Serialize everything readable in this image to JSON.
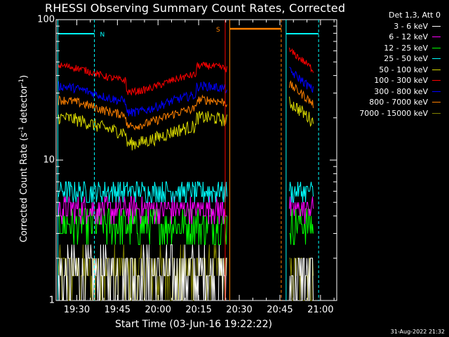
{
  "chart_data": {
    "type": "line",
    "title": "RHESSI Observing Summary Count Rates, Corrected",
    "xlabel": "Start Time (03-Jun-16 19:22:22)",
    "ylabel_main": "Corrected Count Rate (s",
    "ylabel_sup1": "-1",
    "ylabel_mid": " detector",
    "ylabel_sup2": "-1",
    "ylabel_end": ")",
    "y_scale": "log",
    "ylim": [
      1,
      100
    ],
    "xlim_minutes": [
      19.3,
      21.1
    ],
    "x_ticks": [
      "19:30",
      "19:45",
      "20:00",
      "20:15",
      "20:30",
      "20:45",
      "21:00"
    ],
    "y_ticks": [
      "1",
      "10",
      "100"
    ],
    "legend_title": "Det 1,3, Att 0",
    "legend_position": "top-right",
    "series": [
      {
        "name": "3 - 6 keV",
        "color": "#ffffff",
        "approx_level": 1.5
      },
      {
        "name": "6 - 12 keV",
        "color": "#ff00ff",
        "approx_level": 4.5
      },
      {
        "name": "12 - 25 keV",
        "color": "#00ff00",
        "approx_level": 3.5
      },
      {
        "name": "25 - 50 keV",
        "color": "#00ffff",
        "approx_level": 6.0
      },
      {
        "name": "50 - 100 keV",
        "color": "#d8d800",
        "approx_level": 18
      },
      {
        "name": "100 - 300 keV",
        "color": "#ff0000",
        "approx_level": 42
      },
      {
        "name": "300 - 800 keV",
        "color": "#0000ff",
        "approx_level": 30
      },
      {
        "name": "800 - 7000 keV",
        "color": "#ff8000",
        "approx_level": 24
      },
      {
        "name": "7000 - 15000 keV",
        "color": "#808000",
        "approx_level": 1.6
      }
    ],
    "annotations": {
      "n_label": "N",
      "s_label": "S"
    },
    "timestamp": "31-Aug-2022 21:32"
  }
}
